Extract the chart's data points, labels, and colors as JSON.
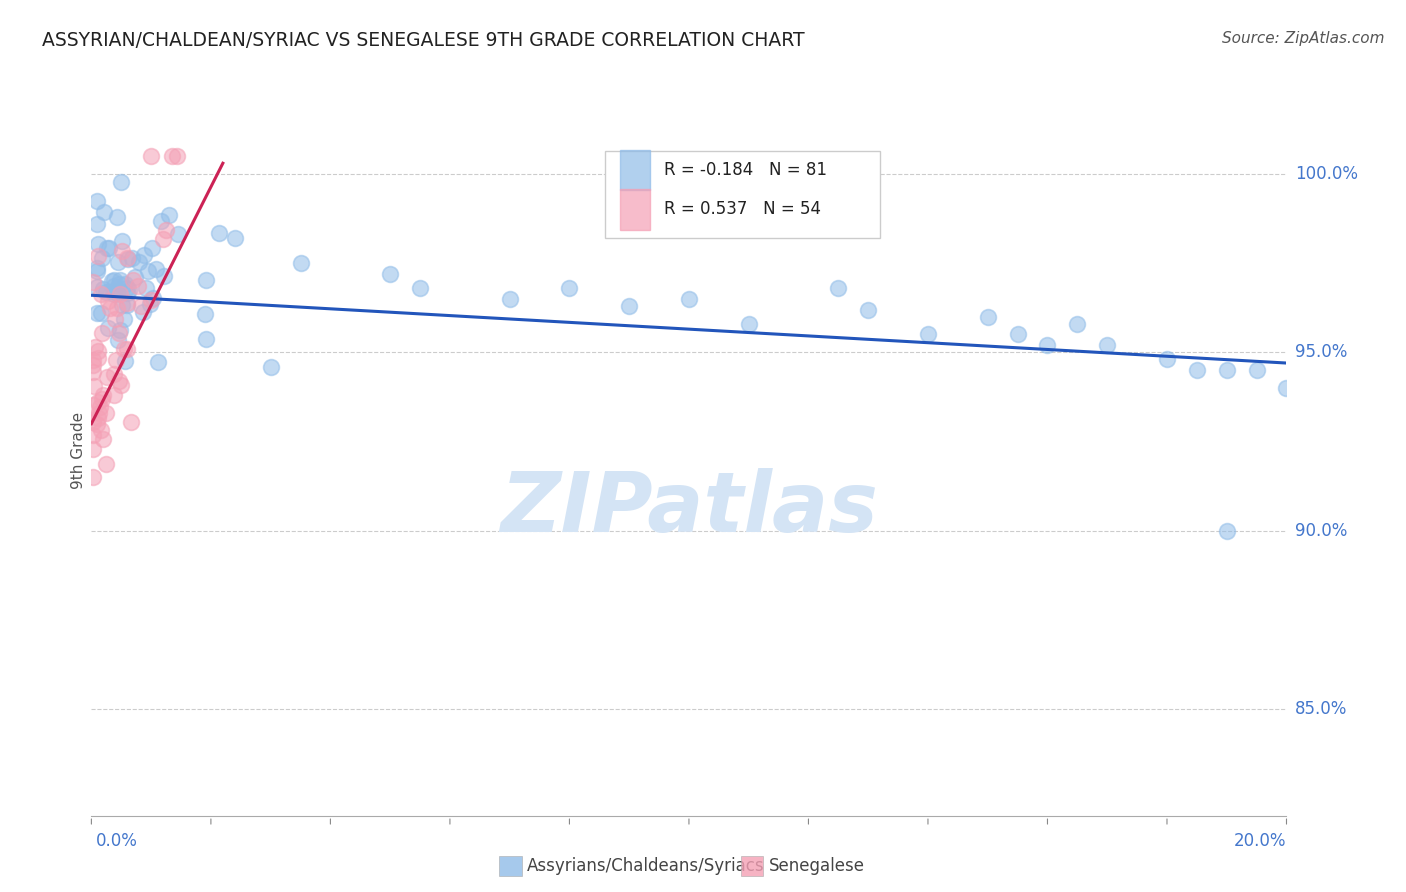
{
  "title": "ASSYRIAN/CHALDEAN/SYRIAC VS SENEGALESE 9TH GRADE CORRELATION CHART",
  "source": "Source: ZipAtlas.com",
  "ylabel": "9th Grade",
  "y_tick_labels": [
    "85.0%",
    "90.0%",
    "95.0%",
    "100.0%"
  ],
  "y_tick_values": [
    0.85,
    0.9,
    0.95,
    1.0
  ],
  "x_range": [
    0.0,
    0.2
  ],
  "y_range": [
    0.82,
    1.025
  ],
  "r_blue": -0.184,
  "n_blue": 81,
  "r_pink": 0.537,
  "n_pink": 54,
  "legend_label_blue": "Assyrians/Chaldeans/Syriacs",
  "legend_label_pink": "Senegalese",
  "blue_color": "#90bce8",
  "pink_color": "#f4a0b5",
  "trendline_blue_color": "#2255bb",
  "trendline_pink_color": "#cc2255",
  "watermark_text": "ZIPatlas",
  "watermark_color": "#d4e4f5",
  "blue_trendline_x": [
    0.0,
    0.2
  ],
  "blue_trendline_y": [
    0.966,
    0.947
  ],
  "pink_trendline_x": [
    0.0,
    0.022
  ],
  "pink_trendline_y": [
    0.93,
    1.003
  ]
}
